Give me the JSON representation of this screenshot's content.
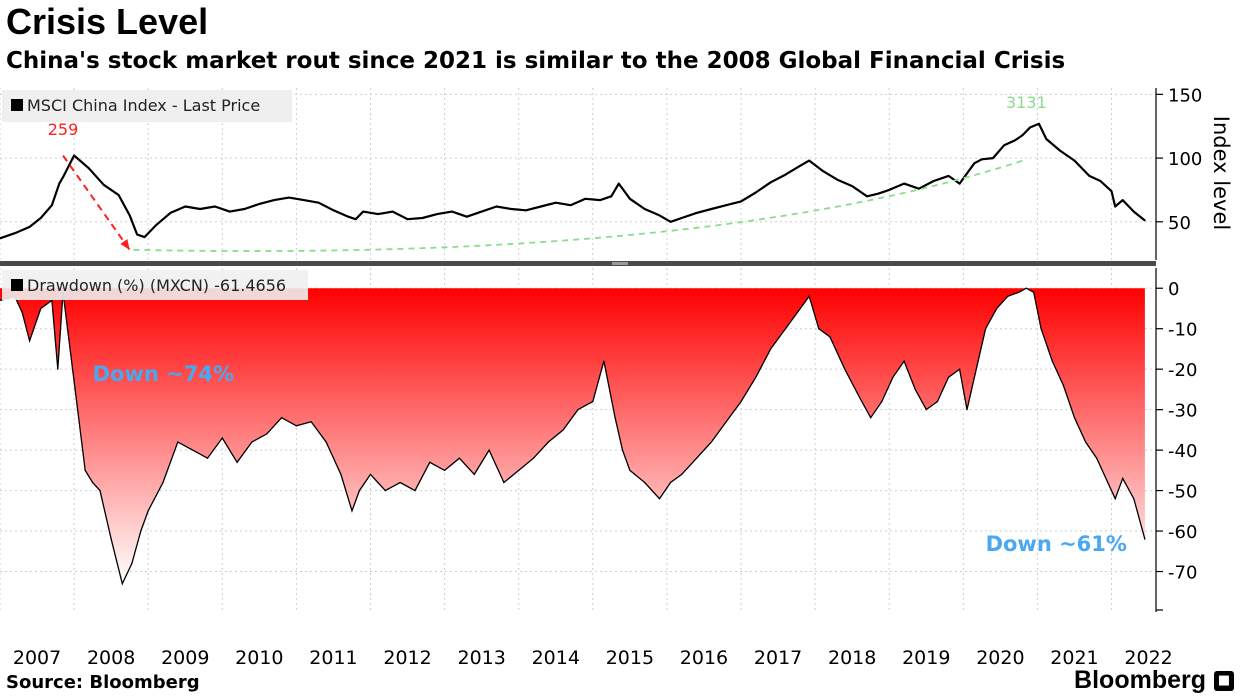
{
  "title": "Crisis Level",
  "subtitle": "China's stock market rout since 2021 is similar to the 2008 Global Financial Crisis",
  "source": "Source: Bloomberg",
  "brand": "Bloomberg",
  "brand_icon": "bloomberg-terminal-icon",
  "chart_data": [
    {
      "type": "line",
      "legend": "MSCI China Index - Last Price",
      "ylabel": "Index level",
      "ylim": [
        20,
        155
      ],
      "yticks": [
        50,
        100,
        150
      ],
      "xlim": [
        2007.0,
        2022.6
      ],
      "xticks": [
        "2007",
        "2008",
        "2009",
        "2010",
        "2011",
        "2012",
        "2013",
        "2014",
        "2015",
        "2016",
        "2017",
        "2018",
        "2019",
        "2020",
        "2021",
        "2022"
      ],
      "line_color": "#000000",
      "x": [
        2007.0,
        2007.2,
        2007.4,
        2007.55,
        2007.7,
        2007.8,
        2007.85,
        2008.0,
        2008.2,
        2008.4,
        2008.6,
        2008.75,
        2008.85,
        2008.95,
        2009.1,
        2009.3,
        2009.5,
        2009.7,
        2009.9,
        2010.1,
        2010.3,
        2010.5,
        2010.7,
        2010.9,
        2011.1,
        2011.3,
        2011.5,
        2011.7,
        2011.8,
        2011.9,
        2012.1,
        2012.3,
        2012.5,
        2012.7,
        2012.9,
        2013.1,
        2013.3,
        2013.5,
        2013.7,
        2013.9,
        2014.1,
        2014.3,
        2014.5,
        2014.7,
        2014.9,
        2015.1,
        2015.25,
        2015.35,
        2015.5,
        2015.7,
        2015.9,
        2016.05,
        2016.2,
        2016.4,
        2016.6,
        2016.8,
        2017.0,
        2017.2,
        2017.4,
        2017.6,
        2017.8,
        2017.92,
        2018.1,
        2018.3,
        2018.5,
        2018.7,
        2018.85,
        2019.0,
        2019.2,
        2019.4,
        2019.6,
        2019.8,
        2019.95,
        2020.05,
        2020.15,
        2020.25,
        2020.4,
        2020.55,
        2020.7,
        2020.8,
        2020.9,
        2021.02,
        2021.12,
        2021.3,
        2021.5,
        2021.7,
        2021.85,
        2022.0,
        2022.05,
        2022.15,
        2022.3,
        2022.45
      ],
      "values": [
        37,
        41,
        46,
        53,
        63,
        80,
        85,
        102,
        92,
        79,
        71,
        55,
        40,
        38,
        47,
        57,
        62,
        60,
        62,
        58,
        60,
        64,
        67,
        69,
        67,
        65,
        59,
        54,
        52,
        58,
        56,
        58,
        52,
        53,
        56,
        58,
        54,
        58,
        62,
        60,
        59,
        62,
        65,
        63,
        68,
        67,
        70,
        80,
        68,
        60,
        55,
        50,
        53,
        57,
        60,
        63,
        66,
        73,
        81,
        87,
        94,
        98,
        90,
        83,
        78,
        70,
        72,
        75,
        80,
        76,
        82,
        86,
        80,
        88,
        96,
        99,
        100,
        110,
        114,
        118,
        124,
        127,
        115,
        106,
        98,
        86,
        82,
        74,
        62,
        67,
        58,
        51
      ],
      "annotations": [
        {
          "label": "259",
          "color": "#ff2020",
          "x": 2007.85,
          "y": 104
        },
        {
          "label": "3131",
          "color": "#8bdc8b",
          "x": 2020.85,
          "y": 125
        }
      ],
      "overlays": [
        {
          "style": "dashed",
          "color": "#ff2020",
          "from": [
            2007.85,
            102
          ],
          "to": [
            2008.75,
            28
          ]
        },
        {
          "style": "dashed-curve",
          "color": "#8bdc8b",
          "from": [
            2008.8,
            28
          ],
          "to": [
            2020.8,
            98
          ]
        }
      ]
    },
    {
      "type": "area",
      "legend": "Drawdown (%) (MXCN) -61.4656",
      "ylim": [
        -80,
        5
      ],
      "yticks": [
        0,
        -10,
        -20,
        -30,
        -40,
        -50,
        -60,
        -70
      ],
      "xlim": [
        2007.0,
        2022.6
      ],
      "fill_gradient": [
        "#ff0000",
        "#ffffff"
      ],
      "x": [
        2007.0,
        2007.2,
        2007.3,
        2007.4,
        2007.55,
        2007.7,
        2007.78,
        2007.85,
        2008.0,
        2008.15,
        2008.25,
        2008.35,
        2008.5,
        2008.65,
        2008.78,
        2008.9,
        2009.0,
        2009.2,
        2009.4,
        2009.6,
        2009.8,
        2010.0,
        2010.2,
        2010.4,
        2010.6,
        2010.8,
        2011.0,
        2011.2,
        2011.4,
        2011.6,
        2011.75,
        2011.85,
        2012.0,
        2012.2,
        2012.4,
        2012.6,
        2012.8,
        2013.0,
        2013.2,
        2013.4,
        2013.6,
        2013.8,
        2014.0,
        2014.2,
        2014.4,
        2014.6,
        2014.8,
        2015.0,
        2015.15,
        2015.3,
        2015.4,
        2015.5,
        2015.7,
        2015.9,
        2016.05,
        2016.2,
        2016.4,
        2016.6,
        2016.8,
        2017.0,
        2017.2,
        2017.4,
        2017.6,
        2017.8,
        2017.92,
        2018.05,
        2018.2,
        2018.4,
        2018.6,
        2018.75,
        2018.9,
        2019.05,
        2019.2,
        2019.35,
        2019.5,
        2019.65,
        2019.8,
        2019.95,
        2020.05,
        2020.15,
        2020.3,
        2020.45,
        2020.6,
        2020.75,
        2020.85,
        2020.95,
        2021.05,
        2021.2,
        2021.35,
        2021.5,
        2021.65,
        2021.8,
        2021.95,
        2022.05,
        2022.15,
        2022.3,
        2022.45
      ],
      "values": [
        -3,
        -2,
        -6,
        -13,
        -5,
        -3,
        -20,
        -1,
        -23,
        -45,
        -48,
        -50,
        -62,
        -73,
        -68,
        -60,
        -55,
        -48,
        -38,
        -40,
        -42,
        -37,
        -43,
        -38,
        -36,
        -32,
        -34,
        -33,
        -38,
        -46,
        -55,
        -50,
        -46,
        -50,
        -48,
        -50,
        -43,
        -45,
        -42,
        -46,
        -40,
        -48,
        -45,
        -42,
        -38,
        -35,
        -30,
        -28,
        -18,
        -32,
        -40,
        -45,
        -48,
        -52,
        -48,
        -46,
        -42,
        -38,
        -33,
        -28,
        -22,
        -15,
        -10,
        -5,
        -2,
        -10,
        -12,
        -20,
        -27,
        -32,
        -28,
        -22,
        -18,
        -25,
        -30,
        -28,
        -22,
        -20,
        -30,
        -22,
        -10,
        -5,
        -2,
        -1,
        0,
        -1,
        -10,
        -18,
        -24,
        -32,
        -38,
        -42,
        -48,
        -52,
        -47,
        -52,
        -62
      ],
      "annotations": [
        {
          "label": "Down ~74%",
          "color": "#4aa8f0",
          "x": 2008.25,
          "y": -21
        },
        {
          "label": "Down ~61%",
          "color": "#4aa8f0",
          "x": 2020.3,
          "y": -63
        }
      ]
    }
  ]
}
